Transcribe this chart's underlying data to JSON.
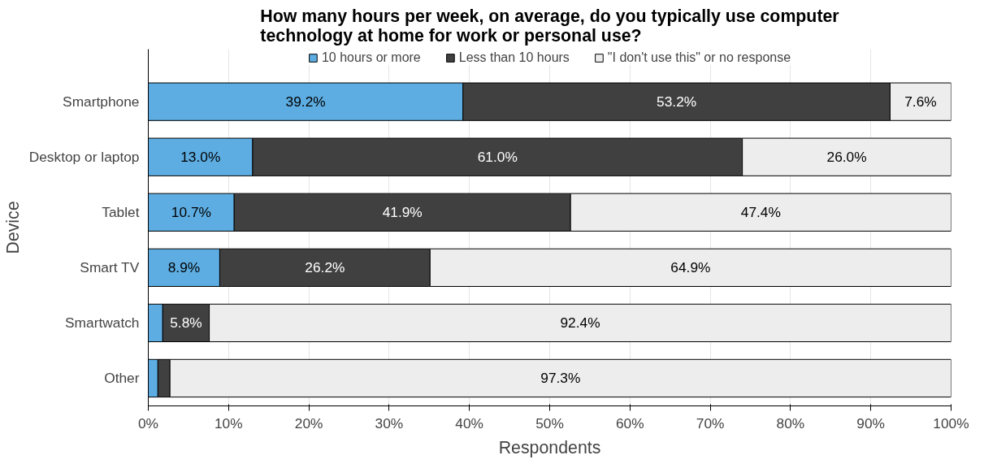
{
  "chart_data": {
    "type": "bar",
    "orientation": "horizontal",
    "stacked": true,
    "title": "How many hours per week, on average, do you typically use computer technology at home for work or personal use?",
    "xlabel": "Respondents",
    "ylabel": "Device",
    "categories": [
      "Smartphone",
      "Desktop or laptop",
      "Tablet",
      "Smart TV",
      "Smartwatch",
      "Other"
    ],
    "series": [
      {
        "name": "10 hours or more",
        "color": "#5dade2",
        "values": [
          39.2,
          13.0,
          10.7,
          8.9,
          1.8,
          1.2
        ],
        "value_labels": [
          "39.2%",
          "13.0%",
          "10.7%",
          "8.9%",
          null,
          null
        ]
      },
      {
        "name": "Less than 10 hours",
        "color": "#404040",
        "values": [
          53.2,
          61.0,
          41.9,
          26.2,
          5.8,
          1.5
        ],
        "value_labels": [
          "53.2%",
          "61.0%",
          "41.9%",
          "26.2%",
          "5.8%",
          null
        ]
      },
      {
        "name": "\"I don't use this\" or no response",
        "color": "#ededed",
        "values": [
          7.6,
          26.0,
          47.4,
          64.9,
          92.4,
          97.3
        ],
        "value_labels": [
          "7.6%",
          "26.0%",
          "47.4%",
          "64.9%",
          "92.4%",
          "97.3%"
        ]
      }
    ],
    "xlim": [
      0,
      100
    ],
    "xticks": [
      {
        "value": 0,
        "label": "0%"
      },
      {
        "value": 10,
        "label": "10%"
      },
      {
        "value": 20,
        "label": "20%"
      },
      {
        "value": 30,
        "label": "30%"
      },
      {
        "value": 40,
        "label": "40%"
      },
      {
        "value": 50,
        "label": "50%"
      },
      {
        "value": 60,
        "label": "60%"
      },
      {
        "value": 70,
        "label": "70%"
      },
      {
        "value": 80,
        "label": "80%"
      },
      {
        "value": 90,
        "label": "90%"
      },
      {
        "value": 100,
        "label": "100%"
      }
    ],
    "grid": "x",
    "legend": "top"
  }
}
